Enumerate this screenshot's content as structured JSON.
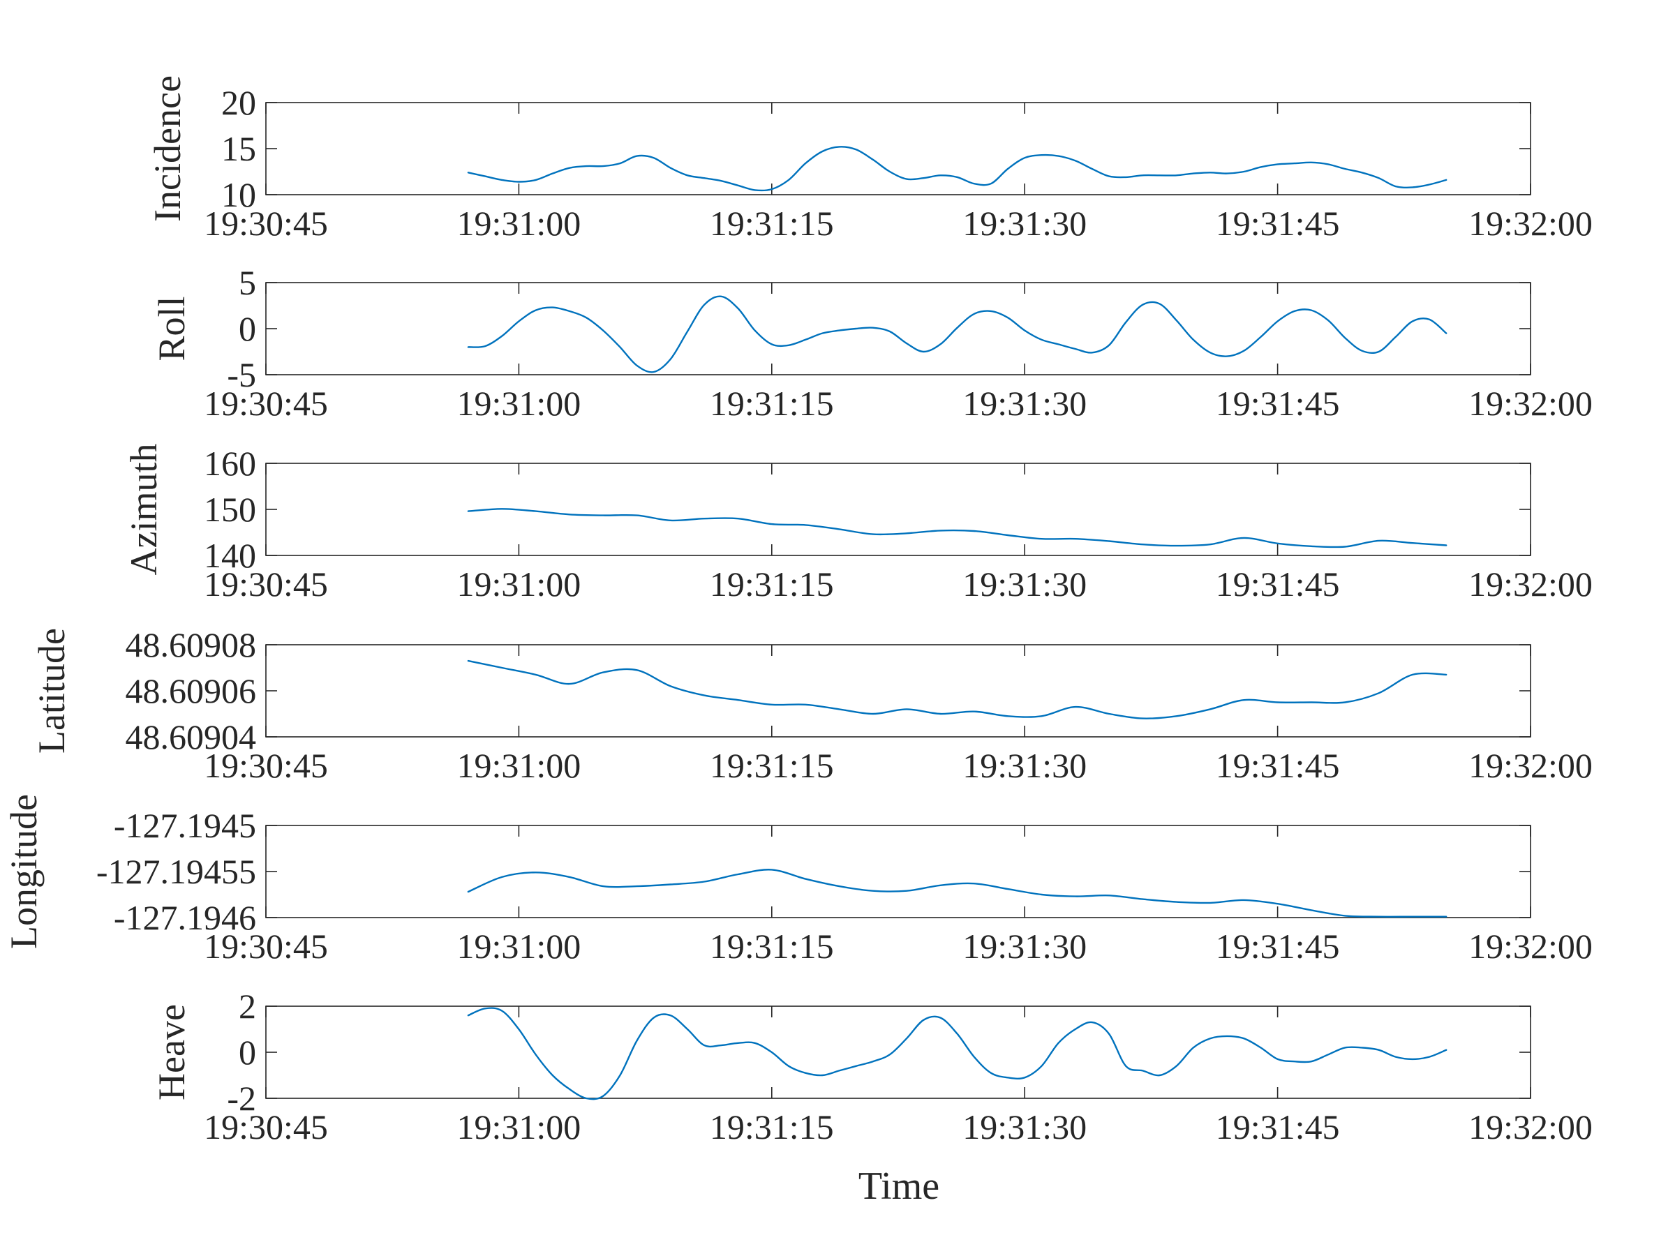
{
  "accent_color": "#0072BD",
  "xlabel": "Time",
  "chart_data": [
    {
      "type": "line",
      "ylabel": "Incidence",
      "xlim": [
        "19:30:45",
        "19:32:00"
      ],
      "xticks": [
        "19:30:45",
        "19:31:00",
        "19:31:15",
        "19:31:30",
        "19:31:45",
        "19:32:00"
      ],
      "ylim": [
        10,
        20
      ],
      "yticks": [
        "10",
        "15",
        "20"
      ],
      "series": [
        {
          "x": [
            "19:30:57",
            "19:30:58",
            "19:30:59",
            "19:31:00",
            "19:31:01",
            "19:31:02",
            "19:31:03",
            "19:31:04",
            "19:31:05",
            "19:31:06",
            "19:31:07",
            "19:31:08",
            "19:31:09",
            "19:31:10",
            "19:31:11",
            "19:31:12",
            "19:31:13",
            "19:31:14",
            "19:31:15",
            "19:31:16",
            "19:31:17",
            "19:31:18",
            "19:31:19",
            "19:31:20",
            "19:31:21",
            "19:31:22",
            "19:31:23",
            "19:31:24",
            "19:31:25",
            "19:31:26",
            "19:31:27",
            "19:31:28",
            "19:31:29",
            "19:31:30",
            "19:31:31",
            "19:31:32",
            "19:31:33",
            "19:31:34",
            "19:31:35",
            "19:31:36",
            "19:31:37",
            "19:31:38",
            "19:31:39",
            "19:31:40",
            "19:31:41",
            "19:31:42",
            "19:31:43",
            "19:31:44",
            "19:31:45",
            "19:31:46",
            "19:31:47",
            "19:31:48",
            "19:31:49",
            "19:31:50",
            "19:31:51",
            "19:31:52",
            "19:31:53",
            "19:31:54",
            "19:31:55"
          ],
          "y": [
            12.4,
            12.0,
            11.6,
            11.4,
            11.6,
            12.3,
            12.9,
            13.1,
            13.1,
            13.4,
            14.2,
            14.0,
            12.9,
            12.1,
            11.8,
            11.5,
            11.0,
            10.5,
            10.6,
            11.6,
            13.4,
            14.7,
            15.2,
            14.9,
            13.8,
            12.5,
            11.7,
            11.8,
            12.1,
            11.9,
            11.2,
            11.2,
            12.8,
            14.0,
            14.3,
            14.2,
            13.7,
            12.8,
            12.0,
            11.9,
            12.1,
            12.1,
            12.1,
            12.3,
            12.4,
            12.3,
            12.5,
            13.0,
            13.3,
            13.4,
            13.5,
            13.3,
            12.8,
            12.4,
            11.8,
            10.9,
            10.8,
            11.1,
            11.6
          ]
        }
      ]
    },
    {
      "type": "line",
      "ylabel": "Roll",
      "xlim": [
        "19:30:45",
        "19:32:00"
      ],
      "xticks": [
        "19:30:45",
        "19:31:00",
        "19:31:15",
        "19:31:30",
        "19:31:45",
        "19:32:00"
      ],
      "ylim": [
        -5,
        5
      ],
      "yticks": [
        "-5",
        "0",
        "5"
      ],
      "series": [
        {
          "x": [
            "19:30:57",
            "19:30:58",
            "19:30:59",
            "19:31:00",
            "19:31:01",
            "19:31:02",
            "19:31:03",
            "19:31:04",
            "19:31:05",
            "19:31:06",
            "19:31:07",
            "19:31:08",
            "19:31:09",
            "19:31:10",
            "19:31:11",
            "19:31:12",
            "19:31:13",
            "19:31:14",
            "19:31:15",
            "19:31:16",
            "19:31:17",
            "19:31:18",
            "19:31:19",
            "19:31:20",
            "19:31:21",
            "19:31:22",
            "19:31:23",
            "19:31:24",
            "19:31:25",
            "19:31:26",
            "19:31:27",
            "19:31:28",
            "19:31:29",
            "19:31:30",
            "19:31:31",
            "19:31:32",
            "19:31:33",
            "19:31:34",
            "19:31:35",
            "19:31:36",
            "19:31:37",
            "19:31:38",
            "19:31:39",
            "19:31:40",
            "19:31:41",
            "19:31:42",
            "19:31:43",
            "19:31:44",
            "19:31:45",
            "19:31:46",
            "19:31:47",
            "19:31:48",
            "19:31:49",
            "19:31:50",
            "19:31:51",
            "19:31:52",
            "19:31:53",
            "19:31:54",
            "19:31:55"
          ],
          "y": [
            -2.0,
            -1.9,
            -0.8,
            0.8,
            2.0,
            2.3,
            1.9,
            1.2,
            -0.2,
            -2.0,
            -4.0,
            -4.7,
            -3.3,
            -0.3,
            2.6,
            3.5,
            2.2,
            -0.2,
            -1.7,
            -1.8,
            -1.2,
            -0.5,
            -0.2,
            0.0,
            0.1,
            -0.3,
            -1.6,
            -2.5,
            -1.7,
            0.1,
            1.6,
            1.9,
            1.2,
            -0.2,
            -1.2,
            -1.7,
            -2.2,
            -2.6,
            -1.8,
            0.7,
            2.6,
            2.7,
            0.9,
            -1.2,
            -2.6,
            -3.0,
            -2.4,
            -0.9,
            0.8,
            1.9,
            2.0,
            0.9,
            -1.0,
            -2.4,
            -2.5,
            -0.9,
            0.8,
            1.0,
            -0.5
          ]
        }
      ]
    },
    {
      "type": "line",
      "ylabel": "Azimuth",
      "xlim": [
        "19:30:45",
        "19:32:00"
      ],
      "xticks": [
        "19:30:45",
        "19:31:00",
        "19:31:15",
        "19:31:30",
        "19:31:45",
        "19:32:00"
      ],
      "ylim": [
        140,
        160
      ],
      "yticks": [
        "140",
        "150",
        "160"
      ],
      "series": [
        {
          "x": [
            "19:30:57",
            "19:30:59",
            "19:31:01",
            "19:31:03",
            "19:31:05",
            "19:31:07",
            "19:31:09",
            "19:31:11",
            "19:31:13",
            "19:31:15",
            "19:31:17",
            "19:31:19",
            "19:31:21",
            "19:31:23",
            "19:31:25",
            "19:31:27",
            "19:31:29",
            "19:31:31",
            "19:31:33",
            "19:31:35",
            "19:31:37",
            "19:31:39",
            "19:31:41",
            "19:31:43",
            "19:31:45",
            "19:31:47",
            "19:31:49",
            "19:31:51",
            "19:31:53",
            "19:31:55"
          ],
          "y": [
            149.6,
            150.1,
            149.6,
            148.9,
            148.7,
            148.7,
            147.6,
            148.0,
            148.0,
            146.8,
            146.6,
            145.7,
            144.6,
            144.8,
            145.4,
            145.3,
            144.4,
            143.6,
            143.6,
            143.1,
            142.4,
            142.1,
            142.4,
            143.8,
            142.6,
            142.0,
            141.9,
            143.2,
            142.7,
            142.2
          ]
        }
      ]
    },
    {
      "type": "line",
      "ylabel": "Latitude",
      "xlim": [
        "19:30:45",
        "19:32:00"
      ],
      "xticks": [
        "19:30:45",
        "19:31:00",
        "19:31:15",
        "19:31:30",
        "19:31:45",
        "19:32:00"
      ],
      "ylim": [
        48.60904,
        48.60908
      ],
      "yticks": [
        "48.60904",
        "48.60906",
        "48.60908"
      ],
      "series": [
        {
          "x": [
            "19:30:57",
            "19:30:59",
            "19:31:01",
            "19:31:03",
            "19:31:05",
            "19:31:07",
            "19:31:09",
            "19:31:11",
            "19:31:13",
            "19:31:15",
            "19:31:17",
            "19:31:19",
            "19:31:21",
            "19:31:23",
            "19:31:25",
            "19:31:27",
            "19:31:29",
            "19:31:31",
            "19:31:33",
            "19:31:35",
            "19:31:37",
            "19:31:39",
            "19:31:41",
            "19:31:43",
            "19:31:45",
            "19:31:47",
            "19:31:49",
            "19:31:51",
            "19:31:53",
            "19:31:55"
          ],
          "y": [
            48.609073,
            48.60907,
            48.609067,
            48.609063,
            48.609068,
            48.609069,
            48.609062,
            48.609058,
            48.609056,
            48.609054,
            48.609054,
            48.609052,
            48.60905,
            48.609052,
            48.60905,
            48.609051,
            48.609049,
            48.609049,
            48.609053,
            48.60905,
            48.609048,
            48.609049,
            48.609052,
            48.609056,
            48.609055,
            48.609055,
            48.609055,
            48.609059,
            48.609067,
            48.609067
          ]
        }
      ]
    },
    {
      "type": "line",
      "ylabel": "Longitude",
      "xlim": [
        "19:30:45",
        "19:32:00"
      ],
      "xticks": [
        "19:30:45",
        "19:31:00",
        "19:31:15",
        "19:31:30",
        "19:31:45",
        "19:32:00"
      ],
      "ylim": [
        -127.1946,
        -127.1945
      ],
      "yticks": [
        "-127.1946",
        "-127.19455",
        "-127.1945"
      ],
      "series": [
        {
          "x": [
            "19:30:57",
            "19:30:59",
            "19:31:01",
            "19:31:03",
            "19:31:05",
            "19:31:07",
            "19:31:09",
            "19:31:11",
            "19:31:13",
            "19:31:15",
            "19:31:17",
            "19:31:19",
            "19:31:21",
            "19:31:23",
            "19:31:25",
            "19:31:27",
            "19:31:29",
            "19:31:31",
            "19:31:33",
            "19:31:35",
            "19:31:37",
            "19:31:39",
            "19:31:41",
            "19:31:43",
            "19:31:45",
            "19:31:47",
            "19:31:49",
            "19:31:51",
            "19:31:53",
            "19:31:55"
          ],
          "y": [
            -127.194572,
            -127.194556,
            -127.194551,
            -127.194556,
            -127.194566,
            -127.194566,
            -127.194564,
            -127.194561,
            -127.194553,
            -127.194548,
            -127.194558,
            -127.194566,
            -127.194571,
            -127.194571,
            -127.194565,
            -127.194563,
            -127.194569,
            -127.194575,
            -127.194577,
            -127.194576,
            -127.19458,
            -127.194583,
            -127.194584,
            -127.194581,
            -127.194585,
            -127.194592,
            -127.194598,
            -127.194599,
            -127.194599,
            -127.194599
          ]
        }
      ]
    },
    {
      "type": "line",
      "ylabel": "Heave",
      "xlim": [
        "19:30:45",
        "19:32:00"
      ],
      "xticks": [
        "19:30:45",
        "19:31:00",
        "19:31:15",
        "19:31:30",
        "19:31:45",
        "19:32:00"
      ],
      "ylim": [
        -2,
        2
      ],
      "yticks": [
        "-2",
        "0",
        "2"
      ],
      "series": [
        {
          "x": [
            "19:30:57",
            "19:30:58",
            "19:30:59",
            "19:31:00",
            "19:31:01",
            "19:31:02",
            "19:31:03",
            "19:31:04",
            "19:31:05",
            "19:31:06",
            "19:31:07",
            "19:31:08",
            "19:31:09",
            "19:31:10",
            "19:31:11",
            "19:31:12",
            "19:31:13",
            "19:31:14",
            "19:31:15",
            "19:31:16",
            "19:31:17",
            "19:31:18",
            "19:31:19",
            "19:31:20",
            "19:31:21",
            "19:31:22",
            "19:31:23",
            "19:31:24",
            "19:31:25",
            "19:31:26",
            "19:31:27",
            "19:31:28",
            "19:31:29",
            "19:31:30",
            "19:31:31",
            "19:31:32",
            "19:31:33",
            "19:31:34",
            "19:31:35",
            "19:31:36",
            "19:31:37",
            "19:31:38",
            "19:31:39",
            "19:31:40",
            "19:31:41",
            "19:31:42",
            "19:31:43",
            "19:31:44",
            "19:31:45",
            "19:31:46",
            "19:31:47",
            "19:31:48",
            "19:31:49",
            "19:31:50",
            "19:31:51",
            "19:31:52",
            "19:31:53",
            "19:31:54",
            "19:31:55"
          ],
          "y": [
            1.6,
            1.9,
            1.8,
            1.0,
            -0.1,
            -1.0,
            -1.6,
            -2.0,
            -1.9,
            -1.0,
            0.5,
            1.5,
            1.6,
            1.0,
            0.3,
            0.3,
            0.4,
            0.4,
            0.0,
            -0.6,
            -0.9,
            -1.0,
            -0.8,
            -0.6,
            -0.4,
            -0.1,
            0.6,
            1.4,
            1.5,
            0.8,
            -0.2,
            -0.9,
            -1.1,
            -1.1,
            -0.6,
            0.4,
            1.0,
            1.3,
            0.8,
            -0.6,
            -0.8,
            -1.0,
            -0.6,
            0.2,
            0.6,
            0.7,
            0.6,
            0.2,
            -0.3,
            -0.4,
            -0.4,
            -0.1,
            0.2,
            0.2,
            0.1,
            -0.2,
            -0.3,
            -0.2,
            0.1
          ]
        }
      ]
    }
  ]
}
